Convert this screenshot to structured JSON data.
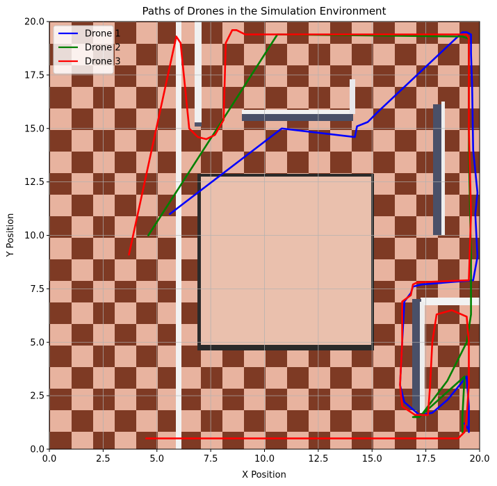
{
  "chart_data": {
    "type": "line",
    "title": "Paths of Drones in the Simulation Environment",
    "xlabel": "X Position",
    "ylabel": "Y Position",
    "xlim": [
      0,
      20
    ],
    "ylim": [
      0,
      20
    ],
    "grid": true,
    "legend_position": "top-left",
    "x_ticks": [
      "0.0",
      "2.5",
      "5.0",
      "7.5",
      "10.0",
      "12.5",
      "15.0",
      "17.5",
      "20.0"
    ],
    "y_ticks": [
      "0.0",
      "2.5",
      "5.0",
      "7.5",
      "10.0",
      "12.5",
      "15.0",
      "17.5",
      "20.0"
    ],
    "series": [
      {
        "name": "Drone 1",
        "color": "#0000ff",
        "points": [
          [
            5.6,
            11.0
          ],
          [
            10.8,
            15.0
          ],
          [
            14.2,
            14.6
          ],
          [
            14.3,
            15.1
          ],
          [
            14.8,
            15.3
          ],
          [
            15.3,
            15.8
          ],
          [
            19.2,
            19.5
          ],
          [
            19.4,
            19.5
          ],
          [
            19.6,
            19.4
          ],
          [
            19.6,
            18.5
          ],
          [
            19.65,
            17.0
          ],
          [
            19.7,
            14.0
          ],
          [
            19.9,
            12.0
          ],
          [
            19.8,
            11.0
          ],
          [
            19.9,
            9.0
          ],
          [
            19.7,
            7.9
          ],
          [
            17.3,
            7.7
          ],
          [
            16.9,
            7.6
          ],
          [
            16.8,
            7.3
          ],
          [
            16.5,
            6.9
          ],
          [
            16.4,
            5.0
          ],
          [
            16.3,
            3.0
          ],
          [
            16.5,
            2.2
          ],
          [
            17.2,
            1.6
          ],
          [
            17.8,
            1.7
          ],
          [
            18.5,
            2.3
          ],
          [
            19.4,
            3.4
          ],
          [
            19.5,
            2.0
          ],
          [
            19.5,
            0.8
          ],
          [
            19.5,
            0.9
          ],
          [
            19.3,
            1.2
          ]
        ]
      },
      {
        "name": "Drone 2",
        "color": "#008000",
        "points": [
          [
            4.6,
            10.0
          ],
          [
            7.8,
            15.0
          ],
          [
            10.6,
            19.4
          ],
          [
            19.2,
            19.3
          ],
          [
            19.5,
            19.2
          ],
          [
            19.5,
            14.0
          ],
          [
            19.6,
            9.0
          ],
          [
            19.6,
            6.3
          ],
          [
            19.4,
            5.0
          ],
          [
            18.5,
            3.2
          ],
          [
            17.3,
            1.6
          ],
          [
            16.9,
            1.5
          ],
          [
            17.2,
            1.5
          ],
          [
            18.3,
            2.5
          ],
          [
            19.3,
            3.4
          ],
          [
            19.2,
            1.5
          ],
          [
            19.2,
            0.8
          ]
        ]
      },
      {
        "name": "Drone 3",
        "color": "#ff0000",
        "points": [
          [
            3.7,
            9.1
          ],
          [
            5.9,
            19.3
          ],
          [
            6.1,
            19.0
          ],
          [
            6.5,
            15.0
          ],
          [
            6.9,
            14.6
          ],
          [
            7.3,
            14.5
          ],
          [
            7.7,
            14.7
          ],
          [
            8.1,
            15.4
          ],
          [
            8.2,
            19.0
          ],
          [
            8.5,
            19.6
          ],
          [
            8.7,
            19.6
          ],
          [
            9.1,
            19.4
          ],
          [
            19.4,
            19.4
          ],
          [
            19.5,
            19.2
          ],
          [
            19.5,
            15.0
          ],
          [
            19.6,
            11.0
          ],
          [
            19.5,
            7.9
          ],
          [
            17.1,
            7.8
          ],
          [
            16.9,
            7.7
          ],
          [
            16.8,
            7.2
          ],
          [
            16.4,
            6.9
          ],
          [
            16.4,
            5.0
          ],
          [
            16.3,
            3.0
          ],
          [
            16.4,
            2.0
          ],
          [
            17.0,
            1.6
          ],
          [
            17.6,
            1.6
          ],
          [
            17.7,
            3.0
          ],
          [
            17.8,
            5.0
          ],
          [
            18.0,
            6.3
          ],
          [
            18.7,
            6.5
          ],
          [
            19.4,
            6.2
          ],
          [
            19.5,
            5.0
          ],
          [
            19.5,
            3.0
          ],
          [
            19.4,
            1.5
          ],
          [
            19.3,
            0.8
          ],
          [
            19.0,
            0.5
          ],
          [
            4.5,
            0.5
          ]
        ]
      }
    ]
  }
}
